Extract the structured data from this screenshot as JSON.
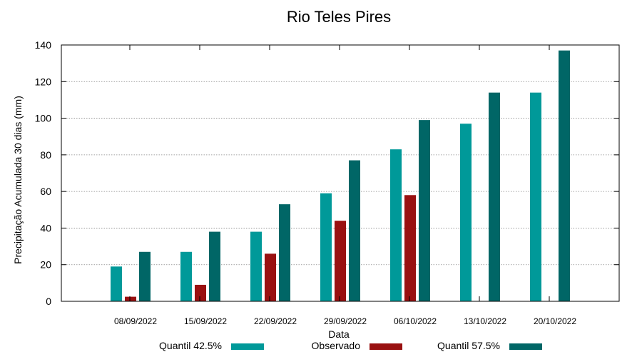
{
  "chart_data": {
    "type": "bar",
    "title": "Rio Teles Pires",
    "xlabel": "Data",
    "ylabel": "Precipitação Acumulada 30 dias (mm)",
    "ylim": [
      0,
      140
    ],
    "yticks": [
      0,
      20,
      40,
      60,
      80,
      100,
      120,
      140
    ],
    "grid": true,
    "legend_position": "bottom",
    "categories": [
      "08/09/2022",
      "15/09/2022",
      "22/09/2022",
      "29/09/2022",
      "06/10/2022",
      "13/10/2022",
      "20/10/2022"
    ],
    "series": [
      {
        "name": "Quantil 42.5%",
        "color": "#009999",
        "values": [
          19,
          27,
          38,
          59,
          83,
          97,
          114
        ]
      },
      {
        "name": "Observado",
        "color": "#991111",
        "values": [
          2.5,
          9,
          26,
          44,
          58,
          null,
          null
        ]
      },
      {
        "name": "Quantil 57.5%",
        "color": "#006666",
        "values": [
          27,
          38,
          53,
          77,
          99,
          114,
          137
        ]
      }
    ]
  }
}
